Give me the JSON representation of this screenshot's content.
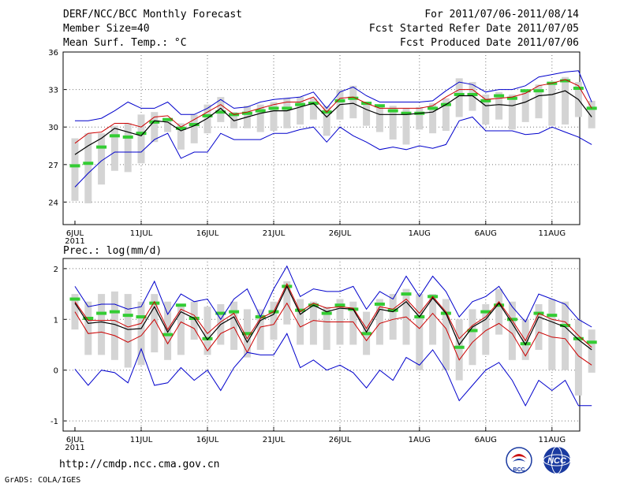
{
  "header": {
    "title": "DERF/NCC/BCC Monthly Forecast",
    "member": "Member Size=40",
    "variable": "Mean Surf. Temp.: °C",
    "period": "For 2011/07/06-2011/08/14",
    "started": "Fcst Started Refer Date 2011/07/05",
    "produced": "Fcst Produced Date 2011/07/06"
  },
  "footer": {
    "url": "http://cmdp.ncc.cma.gov.cn",
    "grads": "GrADS: COLA/IGES",
    "logo_bcc": "BCC",
    "logo_ncc": "NCC"
  },
  "colors": {
    "max_line": "#0000cc",
    "min_line": "#0000cc",
    "upper_line": "#cc0000",
    "mean_line": "#000000",
    "box": "#d4d4d4",
    "climate": "#33cc33"
  },
  "chart_data": [
    {
      "type": "line",
      "title": "Mean Surf. Temp.: °C",
      "ylim": [
        22.2,
        36
      ],
      "yticks": [
        24,
        27,
        30,
        33,
        36
      ],
      "x_count": 40,
      "xtick_labels": [
        {
          "i": 0,
          "label": "6JUL",
          "sub": "2011"
        },
        {
          "i": 5,
          "label": "11JUL"
        },
        {
          "i": 10,
          "label": "16JUL"
        },
        {
          "i": 15,
          "label": "21JUL"
        },
        {
          "i": 20,
          "label": "26JUL"
        },
        {
          "i": 26,
          "label": "1AUG"
        },
        {
          "i": 31,
          "label": "6AUG"
        },
        {
          "i": 36,
          "label": "11AUG"
        }
      ],
      "series": [
        {
          "name": "max",
          "values": [
            30.5,
            30.5,
            30.7,
            31.3,
            32.0,
            31.5,
            31.5,
            32.0,
            31.0,
            31.0,
            31.5,
            32.2,
            31.5,
            31.6,
            32.0,
            32.2,
            32.3,
            32.4,
            32.8,
            31.5,
            32.8,
            33.2,
            32.5,
            32.0,
            32.0,
            32.0,
            32.0,
            32.1,
            32.9,
            33.6,
            33.4,
            32.8,
            33.0,
            33.0,
            33.3,
            34.0,
            34.2,
            34.4,
            34.5,
            32.0
          ]
        },
        {
          "name": "upper",
          "values": [
            28.7,
            29.5,
            29.6,
            30.3,
            30.3,
            30.0,
            30.8,
            30.9,
            30.0,
            30.6,
            31.2,
            31.8,
            31.0,
            31.2,
            31.5,
            31.8,
            32.0,
            32.0,
            32.4,
            31.2,
            32.3,
            32.4,
            31.9,
            31.5,
            31.5,
            31.5,
            31.5,
            31.7,
            32.4,
            33.0,
            33.0,
            32.2,
            32.3,
            32.4,
            32.7,
            33.3,
            33.5,
            33.8,
            33.3,
            31.5
          ]
        },
        {
          "name": "mean",
          "values": [
            27.8,
            28.5,
            29.1,
            29.9,
            29.6,
            29.3,
            30.5,
            30.4,
            29.7,
            30.1,
            30.7,
            31.5,
            30.5,
            30.8,
            31.1,
            31.3,
            31.3,
            31.6,
            31.9,
            30.8,
            31.8,
            31.9,
            31.4,
            31.0,
            31.0,
            31.0,
            31.1,
            31.2,
            31.8,
            32.5,
            32.5,
            31.7,
            31.8,
            31.7,
            32.0,
            32.5,
            32.6,
            32.9,
            32.2,
            30.8
          ]
        },
        {
          "name": "min",
          "values": [
            25.2,
            26.3,
            27.3,
            28.0,
            28.0,
            28.0,
            29.0,
            29.5,
            27.5,
            28.0,
            28.0,
            29.5,
            29.0,
            29.0,
            29.0,
            29.5,
            29.5,
            29.8,
            30.0,
            28.8,
            30.0,
            29.3,
            28.8,
            28.2,
            28.4,
            28.2,
            28.5,
            28.3,
            28.6,
            30.5,
            30.8,
            29.7,
            29.7,
            29.7,
            29.4,
            29.5,
            30.0,
            29.6,
            29.2,
            28.6
          ]
        }
      ],
      "boxes": [
        [
          24.1,
          29.1
        ],
        [
          23.9,
          29.5
        ],
        [
          25.4,
          29.5
        ],
        [
          26.5,
          30.1
        ],
        [
          26.4,
          30.3
        ],
        [
          27.1,
          31.0
        ],
        [
          28.8,
          31.2
        ],
        [
          29.6,
          30.7
        ],
        [
          28.2,
          30.3
        ],
        [
          28.7,
          31.0
        ],
        [
          29.5,
          31.8
        ],
        [
          30.4,
          32.4
        ],
        [
          29.9,
          31.2
        ],
        [
          29.9,
          31.7
        ],
        [
          29.6,
          31.8
        ],
        [
          29.7,
          32.0
        ],
        [
          29.9,
          32.3
        ],
        [
          30.2,
          32.4
        ],
        [
          30.6,
          32.3
        ],
        [
          29.3,
          31.7
        ],
        [
          30.6,
          33.0
        ],
        [
          30.7,
          33.3
        ],
        [
          30.1,
          31.8
        ],
        [
          29.6,
          31.6
        ],
        [
          29.0,
          31.7
        ],
        [
          28.6,
          31.5
        ],
        [
          29.8,
          31.6
        ],
        [
          29.5,
          31.9
        ],
        [
          29.7,
          32.3
        ],
        [
          30.8,
          33.9
        ],
        [
          31.3,
          33.6
        ],
        [
          30.2,
          32.6
        ],
        [
          30.6,
          32.8
        ],
        [
          29.8,
          32.6
        ],
        [
          30.4,
          33.0
        ],
        [
          30.7,
          33.4
        ],
        [
          30.1,
          33.6
        ],
        [
          30.2,
          34.0
        ],
        [
          30.8,
          33.6
        ],
        [
          29.9,
          32.1
        ]
      ],
      "climate": [
        26.9,
        27.1,
        28.4,
        29.3,
        29.2,
        29.5,
        30.4,
        30.6,
        29.9,
        30.2,
        30.9,
        31.2,
        31.0,
        31.1,
        31.3,
        31.5,
        31.5,
        31.8,
        31.9,
        31.2,
        32.1,
        32.3,
        31.9,
        31.7,
        31.3,
        31.1,
        31.1,
        31.5,
        31.8,
        32.6,
        32.6,
        32.1,
        32.5,
        32.3,
        32.9,
        32.9,
        33.5,
        33.7,
        33.1,
        31.5
      ]
    },
    {
      "type": "line",
      "title": "Prec.: log(mm/d)",
      "ylim": [
        -1.2,
        2.2
      ],
      "yticks": [
        -1,
        0,
        1,
        2
      ],
      "x_count": 40,
      "xtick_labels": [
        {
          "i": 0,
          "label": "6JUL",
          "sub": "2011"
        },
        {
          "i": 5,
          "label": "11JUL"
        },
        {
          "i": 10,
          "label": "16JUL"
        },
        {
          "i": 15,
          "label": "21JUL"
        },
        {
          "i": 20,
          "label": "26JUL"
        },
        {
          "i": 26,
          "label": "1AUG"
        },
        {
          "i": 31,
          "label": "6AUG"
        },
        {
          "i": 36,
          "label": "11AUG"
        }
      ],
      "series": [
        {
          "name": "max",
          "values": [
            1.65,
            1.25,
            1.3,
            1.3,
            1.2,
            1.25,
            1.75,
            1.1,
            1.5,
            1.35,
            1.4,
            1.0,
            1.4,
            1.6,
            1.05,
            1.6,
            2.05,
            1.45,
            1.6,
            1.55,
            1.55,
            1.65,
            1.2,
            1.55,
            1.4,
            1.85,
            1.45,
            1.85,
            1.55,
            1.05,
            1.35,
            1.45,
            1.65,
            1.25,
            0.95,
            1.5,
            1.4,
            1.3,
            1.0,
            0.85
          ]
        },
        {
          "name": "upper",
          "values": [
            1.35,
            0.98,
            0.98,
            0.98,
            0.85,
            0.92,
            1.35,
            0.8,
            1.2,
            1.08,
            0.72,
            0.95,
            1.12,
            0.62,
            1.02,
            1.15,
            1.7,
            1.15,
            1.32,
            1.22,
            1.25,
            1.22,
            0.82,
            1.25,
            1.2,
            1.4,
            1.12,
            1.45,
            1.15,
            0.62,
            0.88,
            1.05,
            1.35,
            0.98,
            0.58,
            1.12,
            1.0,
            0.95,
            0.68,
            0.45
          ]
        },
        {
          "name": "mean",
          "values": [
            1.32,
            0.92,
            0.95,
            0.9,
            0.8,
            0.82,
            1.25,
            0.75,
            1.15,
            1.02,
            0.6,
            0.9,
            1.05,
            0.55,
            0.98,
            1.1,
            1.65,
            1.1,
            1.28,
            1.15,
            1.22,
            1.2,
            0.75,
            1.2,
            1.15,
            1.35,
            1.05,
            1.42,
            1.12,
            0.5,
            0.85,
            1.0,
            1.32,
            0.92,
            0.5,
            1.05,
            0.95,
            0.85,
            0.6,
            0.4
          ]
        },
        {
          "name": "lower",
          "values": [
            1.15,
            0.72,
            0.75,
            0.68,
            0.55,
            0.68,
            1.0,
            0.52,
            0.95,
            0.82,
            0.38,
            0.72,
            0.85,
            0.35,
            0.85,
            0.9,
            1.32,
            0.85,
            0.98,
            0.95,
            0.95,
            0.95,
            0.58,
            0.92,
            1.0,
            1.05,
            0.82,
            1.12,
            0.82,
            0.2,
            0.55,
            0.78,
            0.92,
            0.72,
            0.28,
            0.75,
            0.65,
            0.62,
            0.28,
            0.1
          ]
        },
        {
          "name": "min",
          "values": [
            0.02,
            -0.3,
            0.0,
            -0.05,
            -0.25,
            0.42,
            -0.3,
            -0.25,
            0.05,
            -0.2,
            0.0,
            -0.4,
            0.05,
            0.35,
            0.3,
            0.3,
            0.72,
            0.05,
            0.2,
            0.0,
            0.1,
            -0.05,
            -0.35,
            0.0,
            -0.2,
            0.25,
            0.1,
            0.4,
            0.0,
            -0.6,
            -0.3,
            0.0,
            0.15,
            -0.2,
            -0.7,
            -0.2,
            -0.4,
            -0.2,
            -0.7,
            -0.7
          ]
        }
      ],
      "boxes": [
        [
          0.8,
          1.5
        ],
        [
          0.3,
          1.35
        ],
        [
          0.3,
          1.5
        ],
        [
          0.2,
          1.55
        ],
        [
          0.05,
          1.5
        ],
        [
          0.1,
          1.35
        ],
        [
          0.35,
          1.5
        ],
        [
          0.2,
          1.35
        ],
        [
          0.3,
          1.3
        ],
        [
          0.6,
          1.35
        ],
        [
          0.3,
          1.25
        ],
        [
          0.5,
          1.3
        ],
        [
          0.4,
          1.35
        ],
        [
          0.25,
          1.2
        ],
        [
          0.4,
          1.2
        ],
        [
          0.6,
          1.35
        ],
        [
          0.9,
          1.75
        ],
        [
          0.5,
          1.4
        ],
        [
          0.5,
          1.35
        ],
        [
          0.4,
          1.25
        ],
        [
          0.5,
          1.4
        ],
        [
          0.5,
          1.35
        ],
        [
          0.3,
          1.15
        ],
        [
          0.5,
          1.4
        ],
        [
          0.6,
          1.5
        ],
        [
          0.5,
          1.6
        ],
        [
          0.0,
          1.5
        ],
        [
          0.5,
          1.5
        ],
        [
          0.0,
          1.4
        ],
        [
          -0.2,
          1.0
        ],
        [
          0.1,
          1.2
        ],
        [
          0.3,
          1.3
        ],
        [
          0.7,
          1.6
        ],
        [
          0.2,
          1.35
        ],
        [
          0.2,
          1.0
        ],
        [
          0.4,
          1.3
        ],
        [
          0.0,
          1.4
        ],
        [
          0.0,
          1.35
        ],
        [
          -0.5,
          1.0
        ],
        [
          -0.05,
          0.8
        ]
      ],
      "climate": [
        1.4,
        1.02,
        1.12,
        1.15,
        1.08,
        1.05,
        1.32,
        0.7,
        1.28,
        1.02,
        0.62,
        1.12,
        1.15,
        0.72,
        1.05,
        1.15,
        1.65,
        1.18,
        1.28,
        1.12,
        1.28,
        1.2,
        0.72,
        1.3,
        1.18,
        1.5,
        1.05,
        1.45,
        1.12,
        0.45,
        0.78,
        1.15,
        1.28,
        1.0,
        0.52,
        1.12,
        1.08,
        0.88,
        0.62,
        0.55
      ]
    }
  ]
}
